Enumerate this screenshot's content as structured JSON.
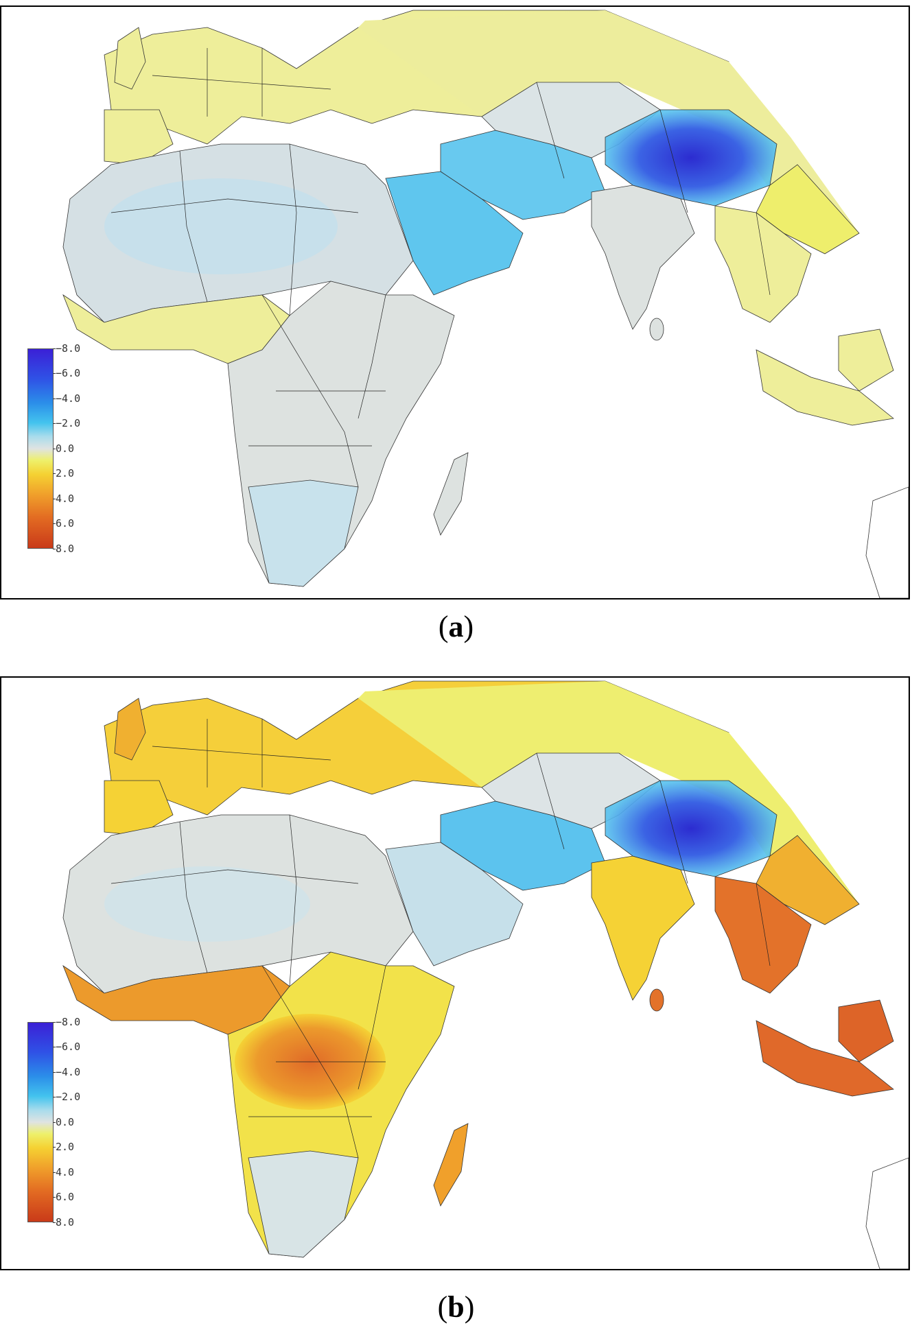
{
  "panels": [
    {
      "id": "a",
      "label": "a",
      "legend": {
        "ticks": [
          "−8.0",
          "−6.0",
          "−4.0",
          "−2.0",
          "0.0",
          "2.0",
          "4.0",
          "6.0",
          "8.0"
        ]
      },
      "colors": {
        "very_negative": "#2e2fd0",
        "strong_negative": "#3d6fe6",
        "negative": "#57c1ee",
        "light_negative": "#b6dfec",
        "neutral": "#dde2e0",
        "slight_positive": "#eeee9a",
        "positive": "#f2ec66",
        "warm": "#f5d235",
        "hot": "#ec9a2c",
        "very_hot": "#e2692a"
      }
    },
    {
      "id": "b",
      "label": "b",
      "legend": {
        "ticks": [
          "−8.0",
          "−6.0",
          "−4.0",
          "−2.0",
          "0.0",
          "2.0",
          "4.0",
          "6.0",
          "8.0"
        ]
      },
      "colors": {
        "very_negative": "#2e2fd0",
        "strong_negative": "#3d6fe6",
        "negative": "#57c1ee",
        "light_negative": "#b6dfec",
        "neutral": "#dde2e0",
        "slight_positive": "#eeee9a",
        "positive": "#f2ec66",
        "warm": "#f5d235",
        "hot": "#ec9a2c",
        "very_hot": "#e2692a"
      }
    }
  ],
  "captions": {
    "a": "a",
    "b": "b"
  }
}
